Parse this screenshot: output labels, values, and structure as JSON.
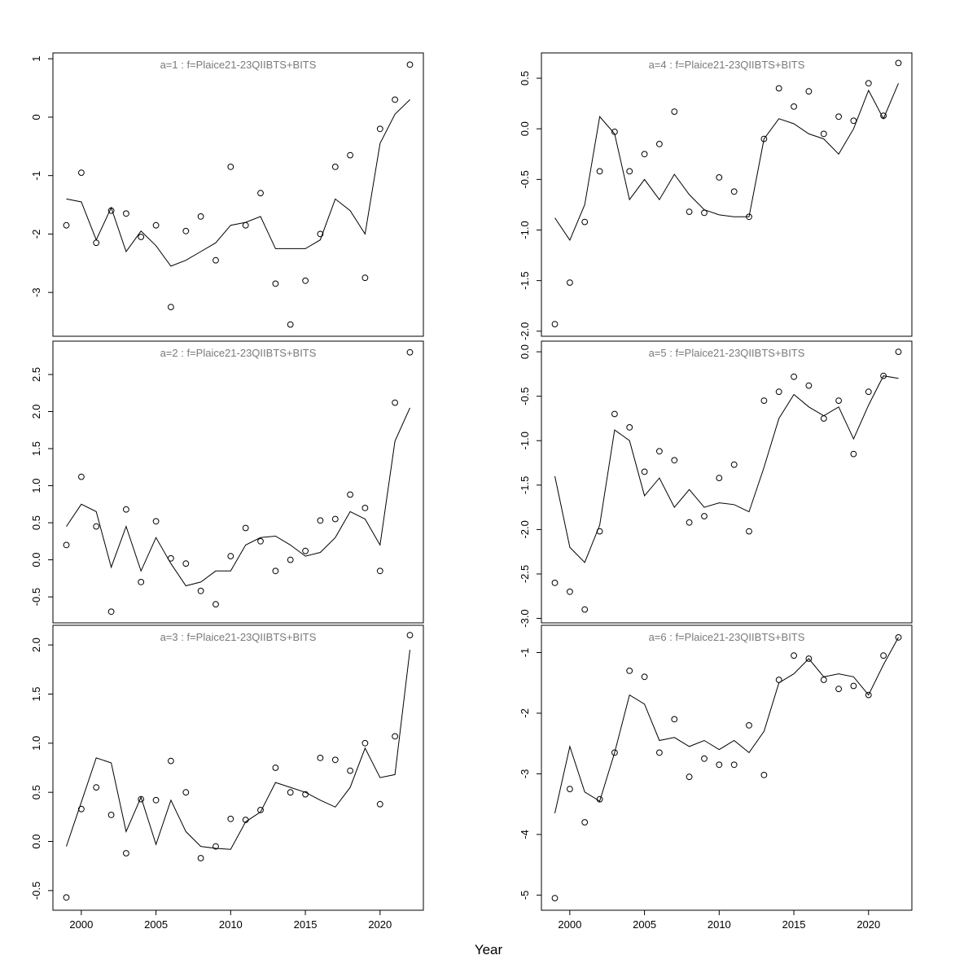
{
  "figure": {
    "xlabel": "Year",
    "background": "#ffffff",
    "stroke_color": "#000000",
    "title_color": "#7a7a7a",
    "marker": "open-circle"
  },
  "x_axis": {
    "xlim": [
      1998.1,
      2022.9
    ],
    "ticks": [
      2000,
      2005,
      2010,
      2015,
      2020
    ],
    "labels": [
      "2000",
      "2005",
      "2010",
      "2015",
      "2020"
    ]
  },
  "chart_data": [
    {
      "type": "scatter",
      "panel_label": "a=1",
      "title": "a=1  :  f=Plaice21-23QIIBTS+BITS",
      "col": 0,
      "row": 0,
      "ylim": [
        -3.75,
        1.1
      ],
      "yticks": [
        1,
        0,
        -1,
        -2,
        -3
      ],
      "ytick_labels": [
        "1",
        "0",
        "-1",
        "-2",
        "-3"
      ],
      "x": [
        1999,
        2000,
        2001,
        2002,
        2003,
        2004,
        2005,
        2006,
        2007,
        2008,
        2009,
        2010,
        2011,
        2012,
        2013,
        2014,
        2015,
        2016,
        2017,
        2018,
        2019,
        2020,
        2021,
        2022
      ],
      "series": [
        {
          "name": "observed",
          "type": "scatter",
          "values": [
            -1.85,
            -0.95,
            -2.15,
            -1.6,
            -1.65,
            -2.05,
            -1.85,
            -3.25,
            -1.95,
            -1.7,
            -2.45,
            -0.85,
            -1.85,
            -1.3,
            -2.85,
            -3.55,
            -2.8,
            -2.0,
            -0.85,
            -0.65,
            -2.75,
            -0.2,
            0.3,
            0.9
          ]
        },
        {
          "name": "fitted",
          "type": "line",
          "values": [
            -1.4,
            -1.45,
            -2.1,
            -1.55,
            -2.3,
            -1.95,
            -2.2,
            -2.55,
            -2.45,
            -2.3,
            -2.15,
            -1.85,
            -1.8,
            -1.7,
            -2.25,
            -2.25,
            -2.25,
            -2.1,
            -1.4,
            -1.6,
            -2.0,
            -0.45,
            0.05,
            0.3
          ]
        }
      ],
      "show_x_axis": false
    },
    {
      "type": "scatter",
      "panel_label": "a=2",
      "title": "a=2  :  f=Plaice21-23QIIBTS+BITS",
      "col": 0,
      "row": 1,
      "ylim": [
        -0.85,
        2.95
      ],
      "yticks": [
        2.5,
        2.0,
        1.5,
        1.0,
        0.5,
        0.0,
        -0.5
      ],
      "ytick_labels": [
        "2.5",
        "2.0",
        "1.5",
        "1.0",
        "0.5",
        "0.0",
        "-0.5"
      ],
      "x": [
        1999,
        2000,
        2001,
        2002,
        2003,
        2004,
        2005,
        2006,
        2007,
        2008,
        2009,
        2010,
        2011,
        2012,
        2013,
        2014,
        2015,
        2016,
        2017,
        2018,
        2019,
        2020,
        2021,
        2022
      ],
      "series": [
        {
          "name": "observed",
          "type": "scatter",
          "values": [
            0.2,
            1.12,
            0.45,
            -0.7,
            0.68,
            -0.3,
            0.52,
            0.02,
            -0.05,
            -0.42,
            -0.6,
            0.05,
            0.43,
            0.25,
            -0.15,
            0.0,
            0.12,
            0.53,
            0.55,
            0.88,
            0.7,
            -0.15,
            2.12,
            2.8
          ]
        },
        {
          "name": "fitted",
          "type": "line",
          "values": [
            0.45,
            0.75,
            0.65,
            -0.1,
            0.45,
            -0.15,
            0.3,
            -0.05,
            -0.35,
            -0.3,
            -0.15,
            -0.15,
            0.2,
            0.3,
            0.32,
            0.2,
            0.05,
            0.1,
            0.3,
            0.65,
            0.55,
            0.2,
            1.6,
            2.05
          ]
        }
      ],
      "show_x_axis": false
    },
    {
      "type": "scatter",
      "panel_label": "a=3",
      "title": "a=3  :  f=Plaice21-23QIIBTS+BITS",
      "col": 0,
      "row": 2,
      "ylim": [
        -0.7,
        2.2
      ],
      "yticks": [
        2.0,
        1.5,
        1.0,
        0.5,
        0.0,
        -0.5
      ],
      "ytick_labels": [
        "2.0",
        "1.5",
        "1.0",
        "0.5",
        "0.0",
        "-0.5"
      ],
      "x": [
        1999,
        2000,
        2001,
        2002,
        2003,
        2004,
        2005,
        2006,
        2007,
        2008,
        2009,
        2010,
        2011,
        2012,
        2013,
        2014,
        2015,
        2016,
        2017,
        2018,
        2019,
        2020,
        2021,
        2022
      ],
      "series": [
        {
          "name": "observed",
          "type": "scatter",
          "values": [
            -0.57,
            0.33,
            0.55,
            0.27,
            -0.12,
            0.43,
            0.42,
            0.82,
            0.5,
            -0.17,
            -0.05,
            0.23,
            0.22,
            0.32,
            0.75,
            0.5,
            0.48,
            0.85,
            0.83,
            0.72,
            1.0,
            0.38,
            1.07,
            2.1
          ]
        },
        {
          "name": "fitted",
          "type": "line",
          "values": [
            -0.05,
            0.4,
            0.85,
            0.8,
            0.1,
            0.45,
            -0.03,
            0.42,
            0.1,
            -0.05,
            -0.07,
            -0.08,
            0.2,
            0.3,
            0.6,
            0.55,
            0.5,
            0.42,
            0.35,
            0.55,
            0.95,
            0.65,
            0.68,
            1.95
          ]
        }
      ],
      "show_x_axis": true
    },
    {
      "type": "scatter",
      "panel_label": "a=4",
      "title": "a=4  :  f=Plaice21-23QIIBTS+BITS",
      "col": 1,
      "row": 0,
      "ylim": [
        -2.05,
        0.75
      ],
      "yticks": [
        0.5,
        0.0,
        -0.5,
        -1.0,
        -1.5,
        -2.0
      ],
      "ytick_labels": [
        "0.5",
        "0.0",
        "-0.5",
        "-1.0",
        "-1.5",
        "-2.0"
      ],
      "x": [
        1999,
        2000,
        2001,
        2002,
        2003,
        2004,
        2005,
        2006,
        2007,
        2008,
        2009,
        2010,
        2011,
        2012,
        2013,
        2014,
        2015,
        2016,
        2017,
        2018,
        2019,
        2020,
        2021,
        2022
      ],
      "series": [
        {
          "name": "observed",
          "type": "scatter",
          "values": [
            -1.93,
            -1.52,
            -0.92,
            -0.42,
            -0.03,
            -0.42,
            -0.25,
            -0.15,
            0.17,
            -0.82,
            -0.83,
            -0.48,
            -0.62,
            -0.87,
            -0.1,
            0.4,
            0.22,
            0.37,
            -0.05,
            0.12,
            0.08,
            0.45,
            0.13,
            0.65
          ]
        },
        {
          "name": "fitted",
          "type": "line",
          "values": [
            -0.88,
            -1.1,
            -0.75,
            0.12,
            -0.05,
            -0.7,
            -0.5,
            -0.7,
            -0.45,
            -0.65,
            -0.8,
            -0.85,
            -0.87,
            -0.87,
            -0.1,
            0.1,
            0.05,
            -0.05,
            -0.1,
            -0.25,
            0.0,
            0.38,
            0.1,
            0.45
          ]
        }
      ],
      "show_x_axis": false
    },
    {
      "type": "scatter",
      "panel_label": "a=5",
      "title": "a=5  :  f=Plaice21-23QIIBTS+BITS",
      "col": 1,
      "row": 1,
      "ylim": [
        -3.05,
        0.12
      ],
      "yticks": [
        0.0,
        -0.5,
        -1.0,
        -1.5,
        -2.0,
        -2.5,
        -3.0
      ],
      "ytick_labels": [
        "0.0",
        "-0.5",
        "-1.0",
        "-1.5",
        "-2.0",
        "-2.5",
        "-3.0"
      ],
      "x": [
        1999,
        2000,
        2001,
        2002,
        2003,
        2004,
        2005,
        2006,
        2007,
        2008,
        2009,
        2010,
        2011,
        2012,
        2013,
        2014,
        2015,
        2016,
        2017,
        2018,
        2019,
        2020,
        2021,
        2022
      ],
      "series": [
        {
          "name": "observed",
          "type": "scatter",
          "values": [
            -2.6,
            -2.7,
            -2.9,
            -2.02,
            -0.7,
            -0.85,
            -1.35,
            -1.12,
            -1.22,
            -1.92,
            -1.85,
            -1.42,
            -1.27,
            -2.02,
            -0.55,
            -0.45,
            -0.28,
            -0.38,
            -0.75,
            -0.55,
            -1.15,
            -0.45,
            -0.27,
            0.0
          ]
        },
        {
          "name": "fitted",
          "type": "line",
          "values": [
            -1.4,
            -2.2,
            -2.37,
            -1.95,
            -0.88,
            -1.0,
            -1.62,
            -1.42,
            -1.75,
            -1.55,
            -1.75,
            -1.7,
            -1.72,
            -1.8,
            -1.3,
            -0.75,
            -0.48,
            -0.62,
            -0.72,
            -0.62,
            -0.98,
            -0.6,
            -0.27,
            -0.3
          ]
        }
      ],
      "show_x_axis": false
    },
    {
      "type": "scatter",
      "panel_label": "a=6",
      "title": "a=6  :  f=Plaice21-23QIIBTS+BITS",
      "col": 1,
      "row": 2,
      "ylim": [
        -5.25,
        -0.55
      ],
      "yticks": [
        -1,
        -2,
        -3,
        -4,
        -5
      ],
      "ytick_labels": [
        "-1",
        "-2",
        "-3",
        "-4",
        "-5"
      ],
      "x": [
        1999,
        2000,
        2001,
        2002,
        2003,
        2004,
        2005,
        2006,
        2007,
        2008,
        2009,
        2010,
        2011,
        2012,
        2013,
        2014,
        2015,
        2016,
        2017,
        2018,
        2019,
        2020,
        2021,
        2022
      ],
      "series": [
        {
          "name": "observed",
          "type": "scatter",
          "values": [
            -5.05,
            -3.25,
            -3.8,
            -3.42,
            -2.65,
            -1.3,
            -1.4,
            -2.65,
            -2.1,
            -3.05,
            -2.75,
            -2.85,
            -2.85,
            -2.2,
            -3.02,
            -1.45,
            -1.05,
            -1.1,
            -1.45,
            -1.6,
            -1.55,
            -1.7,
            -1.05,
            -0.75
          ]
        },
        {
          "name": "fitted",
          "type": "line",
          "values": [
            -3.65,
            -2.55,
            -3.3,
            -3.45,
            -2.65,
            -1.7,
            -1.85,
            -2.45,
            -2.4,
            -2.55,
            -2.45,
            -2.6,
            -2.45,
            -2.65,
            -2.3,
            -1.5,
            -1.35,
            -1.1,
            -1.4,
            -1.35,
            -1.4,
            -1.7,
            -1.2,
            -0.75
          ]
        }
      ],
      "show_x_axis": true
    }
  ]
}
